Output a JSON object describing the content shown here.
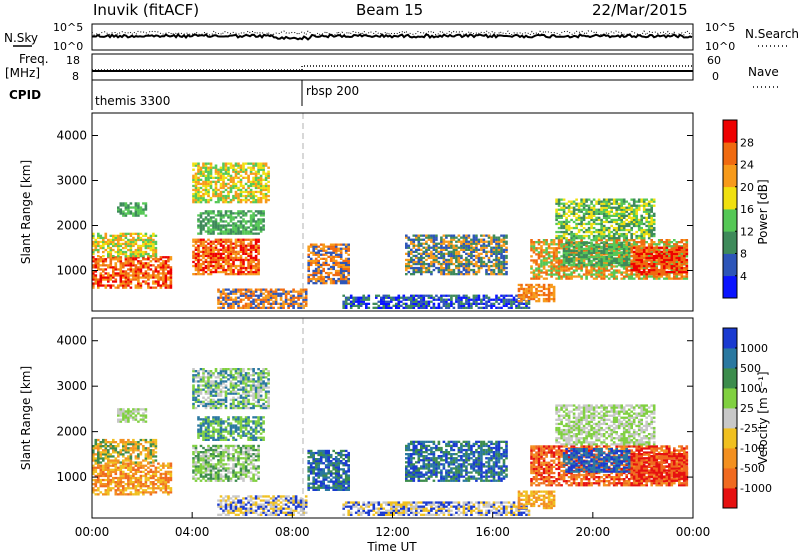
{
  "header": {
    "station": "Inuvik (fitACF)",
    "beam": "Beam 15",
    "date": "22/Mar/2015"
  },
  "side_labels": {
    "nsky": "N.Sky",
    "freq": "Freq.",
    "freq_unit": "[MHz]",
    "cpid": "CPID",
    "nsearch": "N.Search",
    "nave": "Nave"
  },
  "param_ticks": {
    "nsky_top": "10^5",
    "nsky_bot": "10^0",
    "nsearch_top": "10^5",
    "nsearch_bot": "10^0",
    "freq_top": "18",
    "freq_bot": "8",
    "nave_top": "60",
    "nave_bot": "0"
  },
  "cpid": [
    {
      "label": "themis 3300",
      "start_hour": 0
    },
    {
      "label": "rbsp 200",
      "start_hour": 8.7
    }
  ],
  "chart_data": [
    {
      "type": "heatmap",
      "panel": "power",
      "xlabel": "",
      "ylabel": "Slant Range [km]",
      "x_range_hours": [
        0,
        24
      ],
      "y_range_km": [
        100,
        4500
      ],
      "y_ticks": [
        1000,
        2000,
        3000,
        4000
      ],
      "colorbar": {
        "label": "Power [dB]",
        "ticks": [
          "4",
          "8",
          "12",
          "16",
          "20",
          "24",
          "28"
        ],
        "colors": [
          "#0a14ff",
          "#2d55b8",
          "#3e8a5a",
          "#55c856",
          "#f0e010",
          "#f79a1a",
          "#f06a10",
          "#ee0000"
        ]
      }
    },
    {
      "type": "heatmap",
      "panel": "velocity",
      "xlabel": "Time UT",
      "ylabel": "Slant Range [km]",
      "x_range_hours": [
        0,
        24
      ],
      "y_range_km": [
        100,
        4500
      ],
      "x_ticks": [
        "00:00",
        "04:00",
        "08:00",
        "12:00",
        "16:00",
        "20:00",
        "00:00"
      ],
      "y_ticks": [
        1000,
        2000,
        3000,
        4000
      ],
      "colorbar": {
        "label": "Velocity [m s⁻¹]",
        "ticks": [
          "1000",
          "500",
          "100",
          "25",
          "-25",
          "-100",
          "-500",
          "-1000"
        ],
        "colors": [
          "#1a3ad0",
          "#2a78a0",
          "#3c8c4c",
          "#80d040",
          "#c8c8c8",
          "#f0c020",
          "#f39020",
          "#f06a20",
          "#e61010"
        ]
      }
    }
  ],
  "colors": {
    "grid_dashed": "#b0b0b0",
    "axis": "#000000"
  }
}
